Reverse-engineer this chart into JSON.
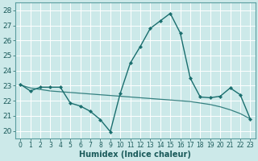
{
  "title": "",
  "xlabel": "Humidex (Indice chaleur)",
  "bg_color": "#cce9e9",
  "plot_bg_color": "#cce9e9",
  "axis_bg_color": "#5a9ea0",
  "grid_color": "#ffffff",
  "line1_color": "#1a6e6e",
  "line2_color": "#1a6e6e",
  "xlim": [
    -0.5,
    23.5
  ],
  "ylim": [
    19.5,
    28.5
  ],
  "yticks": [
    20,
    21,
    22,
    23,
    24,
    25,
    26,
    27,
    28
  ],
  "xtick_positions": [
    0,
    1,
    2,
    3,
    4,
    5,
    6,
    7,
    8,
    9,
    10,
    11,
    12,
    13,
    14,
    15,
    16,
    17,
    18,
    19,
    20,
    21,
    22,
    23
  ],
  "xtick_labels": [
    "0",
    "1",
    "2",
    "3",
    "4",
    "5",
    "6",
    "7",
    "8",
    "9",
    "10",
    "11",
    "12",
    "13",
    "14",
    "15",
    "16",
    "17",
    "18",
    "19",
    "20",
    "21",
    "22",
    "23"
  ],
  "x": [
    0,
    1,
    2,
    3,
    4,
    5,
    6,
    7,
    8,
    9,
    10,
    11,
    12,
    13,
    14,
    15,
    16,
    17,
    18,
    19,
    20,
    21,
    22,
    23
  ],
  "line1_y": [
    23.1,
    22.65,
    22.9,
    22.9,
    22.9,
    21.85,
    21.65,
    21.3,
    20.75,
    19.95,
    22.5,
    24.5,
    25.6,
    26.8,
    27.3,
    27.8,
    26.5,
    23.5,
    22.25,
    22.2,
    22.3,
    22.85,
    22.4,
    20.8
  ],
  "line2_y": [
    23.05,
    22.85,
    22.75,
    22.65,
    22.6,
    22.55,
    22.5,
    22.45,
    22.4,
    22.35,
    22.3,
    22.25,
    22.2,
    22.15,
    22.1,
    22.05,
    22.0,
    21.95,
    21.85,
    21.75,
    21.6,
    21.4,
    21.15,
    20.8
  ],
  "xlabel_color": "#1a5a5a",
  "tick_color": "#1a5a5a",
  "xlabel_fontsize": 7,
  "ytick_fontsize": 6.5,
  "xtick_fontsize": 5.5
}
